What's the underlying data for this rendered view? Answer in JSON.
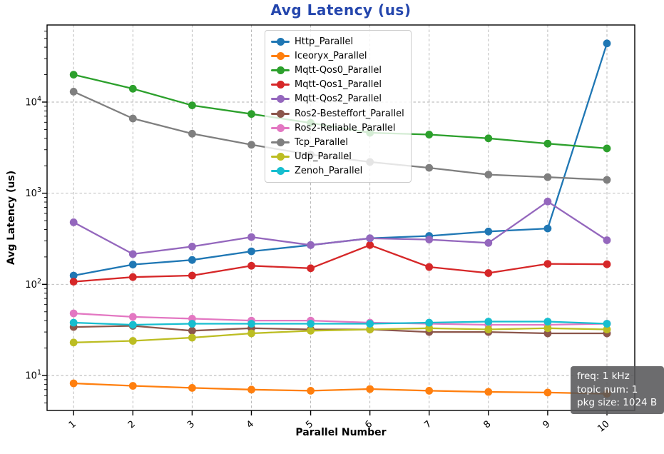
{
  "title": "Avg Latency  (us)",
  "axes": {
    "xlabel": "Parallel Number",
    "ylabel": "Avg Latency (us)"
  },
  "info_box": {
    "lines": [
      "freq: 1 kHz",
      "topic num: 1",
      "pkg size: 1024 B"
    ]
  },
  "colors": {
    "title": "#2446ad",
    "grid": "#b2b2b2",
    "axis": "#000000",
    "infobox_bg": "#565658",
    "infobox_text": "#ffffff",
    "legend_border": "#cccccc"
  },
  "chart_data": {
    "type": "line",
    "title": "Avg Latency  (us)",
    "xlabel": "Parallel Number",
    "ylabel": "Avg Latency (us)",
    "x": [
      1,
      2,
      3,
      4,
      5,
      6,
      7,
      8,
      9,
      10
    ],
    "x_tick_labels": [
      "1",
      "2",
      "3",
      "4",
      "5",
      "6",
      "7",
      "8",
      "9",
      "10"
    ],
    "yscale": "log",
    "ylim": [
      4.1,
      70000
    ],
    "y_tick_exponents": [
      1,
      2,
      3,
      4
    ],
    "grid": true,
    "legend_position": "upper center inside",
    "annotation": {
      "position": "lower right",
      "lines": [
        "freq: 1 kHz",
        "topic num: 1",
        "pkg size: 1024 B"
      ]
    },
    "series": [
      {
        "name": "Http_Parallel",
        "color": "#1f77b4",
        "values": [
          125,
          165,
          185,
          230,
          270,
          320,
          340,
          380,
          410,
          44000
        ]
      },
      {
        "name": "Iceoryx_Parallel",
        "color": "#ff7f0e",
        "values": [
          8.2,
          7.7,
          7.3,
          7.0,
          6.8,
          7.1,
          6.8,
          6.6,
          6.5,
          6.3
        ]
      },
      {
        "name": "Mqtt-Qos0_Parallel",
        "color": "#2ca02c",
        "values": [
          20000,
          14000,
          9200,
          7400,
          5900,
          4600,
          4400,
          4000,
          3500,
          3100
        ]
      },
      {
        "name": "Mqtt-Qos1_Parallel",
        "color": "#d62728",
        "values": [
          107,
          120,
          125,
          160,
          150,
          270,
          155,
          133,
          168,
          166
        ]
      },
      {
        "name": "Mqtt-Qos2_Parallel",
        "color": "#9467bd",
        "values": [
          480,
          215,
          260,
          330,
          270,
          320,
          310,
          285,
          810,
          305
        ]
      },
      {
        "name": "Ros2-Besteffort_Parallel",
        "color": "#8c564b",
        "values": [
          34,
          35,
          31,
          33,
          32,
          32,
          30,
          30,
          29,
          29
        ]
      },
      {
        "name": "Ros2-Reliable_Parallel",
        "color": "#e377c2",
        "values": [
          48,
          44,
          42,
          40,
          40,
          38,
          37,
          36,
          36,
          37
        ]
      },
      {
        "name": "Tcp_Parallel",
        "color": "#7f7f7f",
        "values": [
          13000,
          6600,
          4500,
          3400,
          2650,
          2200,
          1900,
          1600,
          1500,
          1400
        ]
      },
      {
        "name": "Udp_Parallel",
        "color": "#bcbd22",
        "values": [
          23,
          24,
          26,
          29,
          31,
          32,
          33,
          32,
          33,
          32
        ]
      },
      {
        "name": "Zenoh_Parallel",
        "color": "#17becf",
        "values": [
          38,
          36,
          37,
          37,
          37,
          37,
          38,
          39,
          39,
          37
        ]
      }
    ]
  }
}
